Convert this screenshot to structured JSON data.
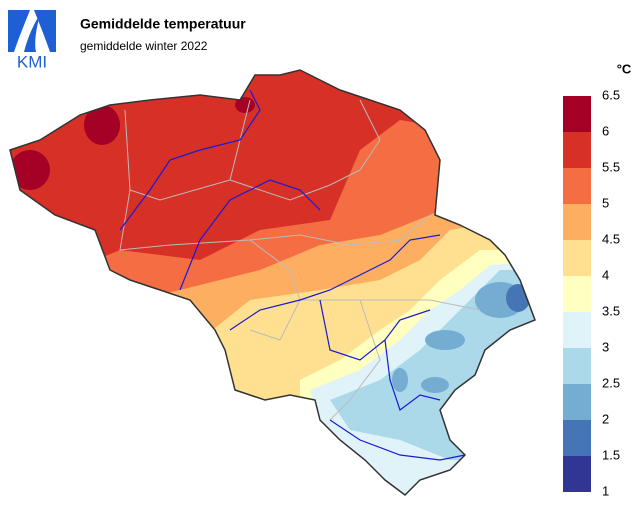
{
  "header": {
    "logo": "KMI",
    "title": "Gemiddelde temperatuur",
    "subtitle": "gemiddelde winter 2022"
  },
  "legend": {
    "unit": "°C",
    "ticks": [
      6.5,
      6,
      5.5,
      5,
      4.5,
      4,
      3.5,
      3,
      2.5,
      2,
      1.5,
      1
    ],
    "colors": [
      "#a50026",
      "#d73027",
      "#f46d43",
      "#fdae61",
      "#fee090",
      "#ffffbf",
      "#e0f3f8",
      "#abd9e9",
      "#74add1",
      "#4575b4",
      "#313695"
    ]
  }
}
